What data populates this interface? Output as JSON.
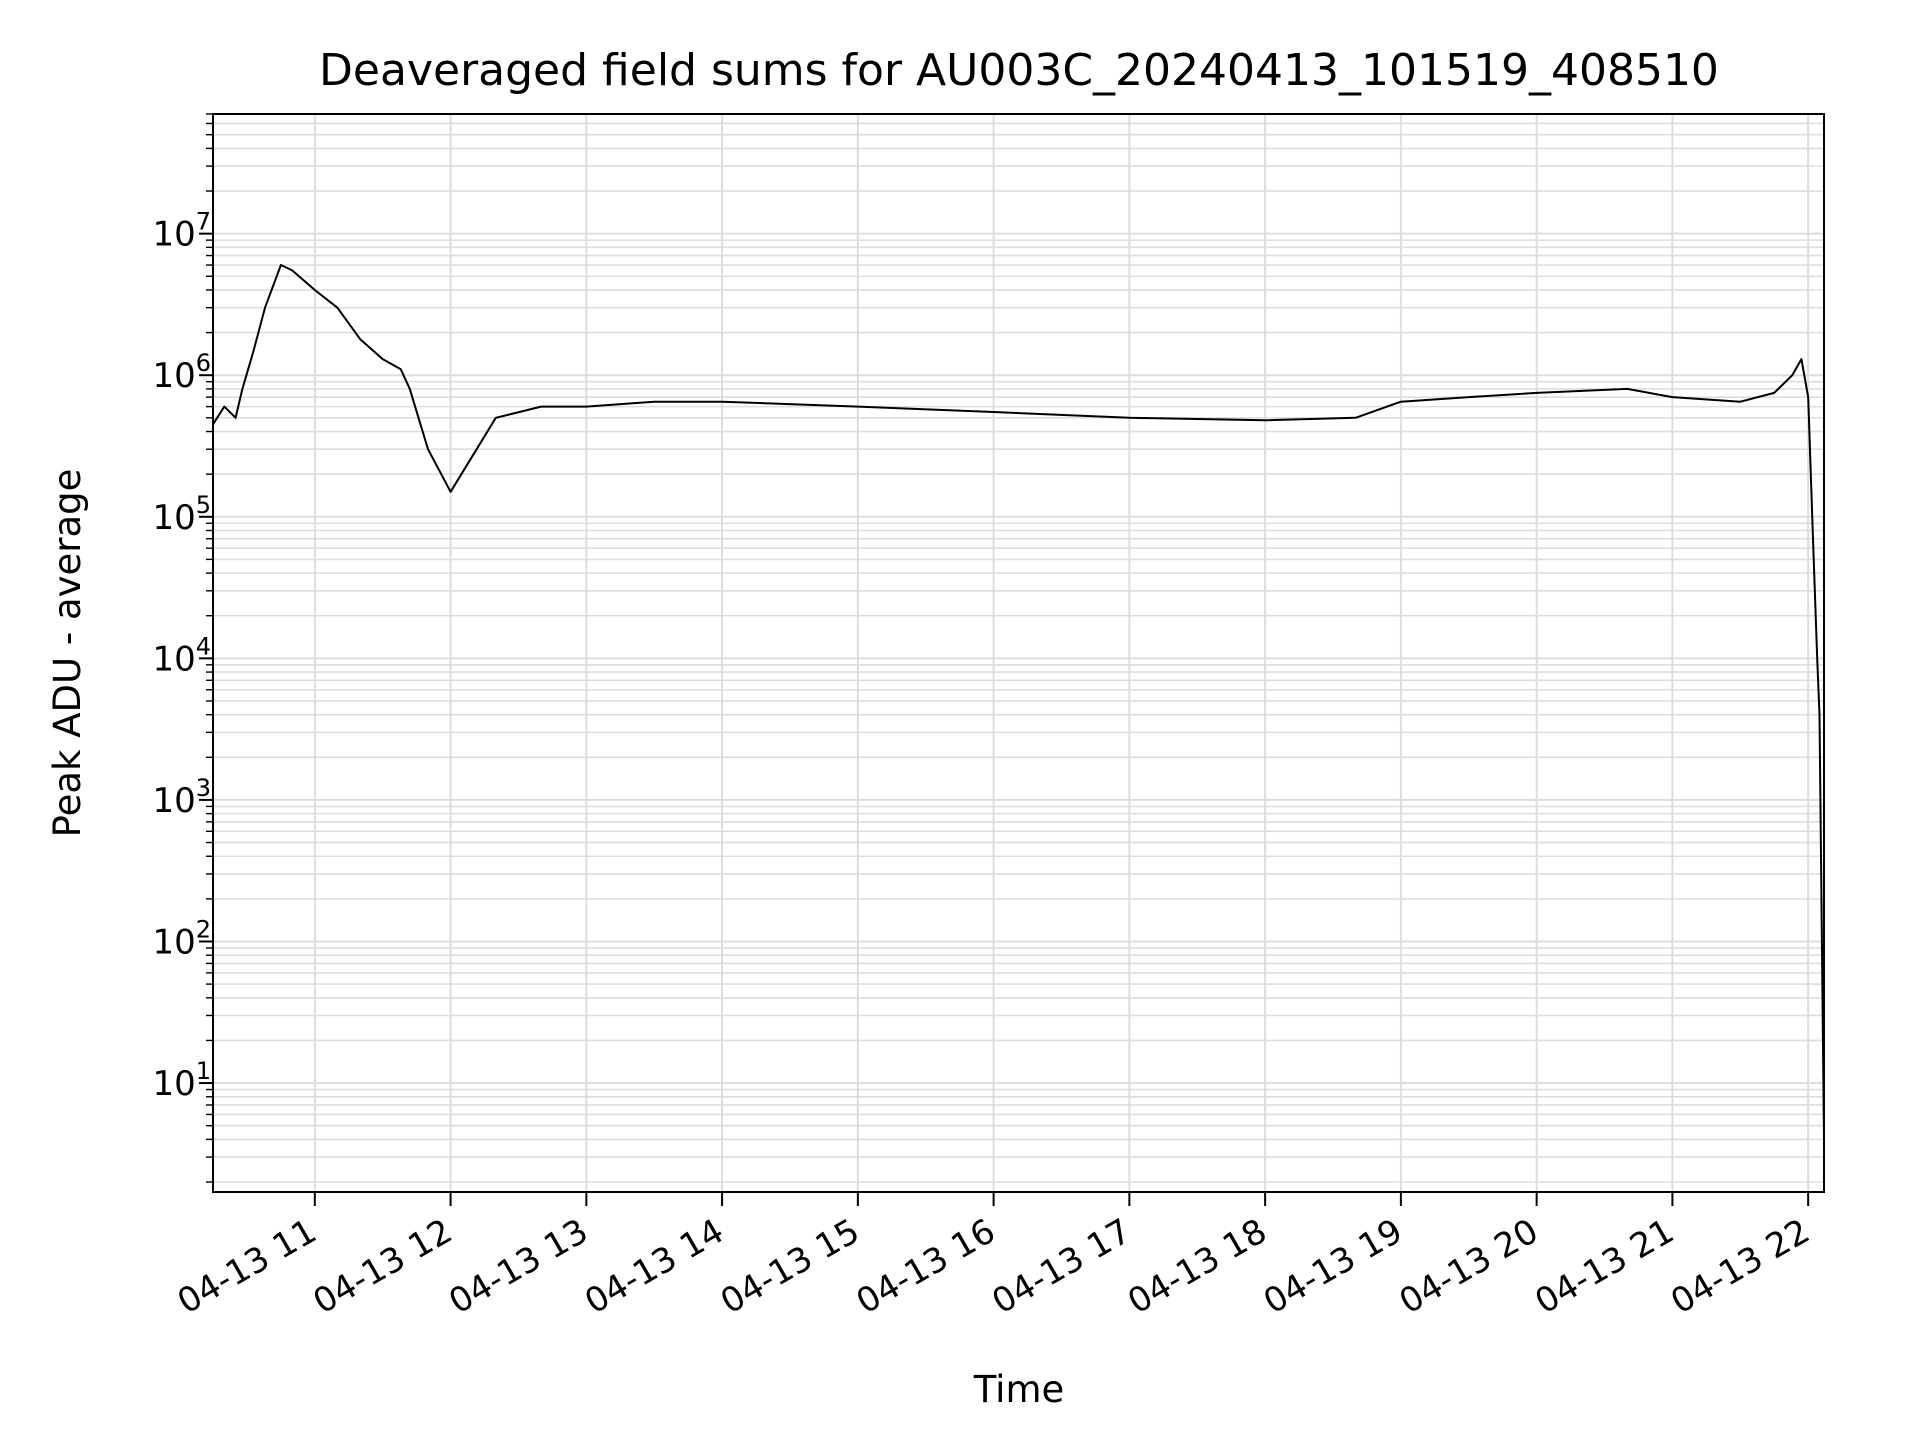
{
  "chart_data": {
    "type": "line",
    "title": "Deaveraged field sums for AU003C_20240413_101519_408510",
    "xlabel": "Time",
    "ylabel": "Peak ADU - average",
    "yscale": "log",
    "grid": true,
    "line_color": "#000000",
    "grid_color": "#dddddd",
    "xlim": [
      "2024-04-13 10:15",
      "2024-04-13 22:07"
    ],
    "ylim": [
      1.7,
      70000000
    ],
    "x_ticks": [
      {
        "t": "2024-04-13 11:00",
        "label": "04-13 11"
      },
      {
        "t": "2024-04-13 12:00",
        "label": "04-13 12"
      },
      {
        "t": "2024-04-13 13:00",
        "label": "04-13 13"
      },
      {
        "t": "2024-04-13 14:00",
        "label": "04-13 14"
      },
      {
        "t": "2024-04-13 15:00",
        "label": "04-13 15"
      },
      {
        "t": "2024-04-13 16:00",
        "label": "04-13 16"
      },
      {
        "t": "2024-04-13 17:00",
        "label": "04-13 17"
      },
      {
        "t": "2024-04-13 18:00",
        "label": "04-13 18"
      },
      {
        "t": "2024-04-13 19:00",
        "label": "04-13 19"
      },
      {
        "t": "2024-04-13 20:00",
        "label": "04-13 20"
      },
      {
        "t": "2024-04-13 21:00",
        "label": "04-13 21"
      },
      {
        "t": "2024-04-13 22:00",
        "label": "04-13 22"
      }
    ],
    "y_ticks": [
      {
        "value": 10,
        "base": "10",
        "exp": "1"
      },
      {
        "value": 100,
        "base": "10",
        "exp": "2"
      },
      {
        "value": 1000,
        "base": "10",
        "exp": "3"
      },
      {
        "value": 10000,
        "base": "10",
        "exp": "4"
      },
      {
        "value": 100000,
        "base": "10",
        "exp": "5"
      },
      {
        "value": 1000000,
        "base": "10",
        "exp": "6"
      },
      {
        "value": 10000000,
        "base": "10",
        "exp": "7"
      }
    ],
    "series": [
      {
        "x": [
          "2024-04-13 10:15",
          "2024-04-13 10:20",
          "2024-04-13 10:25",
          "2024-04-13 10:28",
          "2024-04-13 10:33",
          "2024-04-13 10:38",
          "2024-04-13 10:45",
          "2024-04-13 10:50",
          "2024-04-13 11:00",
          "2024-04-13 11:10",
          "2024-04-13 11:20",
          "2024-04-13 11:30",
          "2024-04-13 11:38",
          "2024-04-13 11:42",
          "2024-04-13 11:50",
          "2024-04-13 12:00",
          "2024-04-13 12:20",
          "2024-04-13 12:40",
          "2024-04-13 13:00",
          "2024-04-13 13:30",
          "2024-04-13 14:00",
          "2024-04-13 15:00",
          "2024-04-13 16:00",
          "2024-04-13 17:00",
          "2024-04-13 18:00",
          "2024-04-13 18:40",
          "2024-04-13 19:00",
          "2024-04-13 19:30",
          "2024-04-13 20:00",
          "2024-04-13 20:40",
          "2024-04-13 21:00",
          "2024-04-13 21:30",
          "2024-04-13 21:45",
          "2024-04-13 21:53",
          "2024-04-13 21:57",
          "2024-04-13 22:00",
          "2024-04-13 22:02",
          "2024-04-13 22:04",
          "2024-04-13 22:05",
          "2024-04-13 22:07"
        ],
        "y": [
          450000,
          600000,
          500000,
          800000,
          1500000,
          3000000,
          6000000,
          5500000,
          4000000,
          3000000,
          1800000,
          1300000,
          1100000,
          800000,
          300000,
          150000,
          500000,
          600000,
          600000,
          650000,
          650000,
          600000,
          550000,
          500000,
          480000,
          500000,
          650000,
          700000,
          750000,
          800000,
          700000,
          650000,
          750000,
          1000000,
          1300000,
          700000,
          80000,
          10000,
          4000,
          4
        ]
      }
    ]
  }
}
